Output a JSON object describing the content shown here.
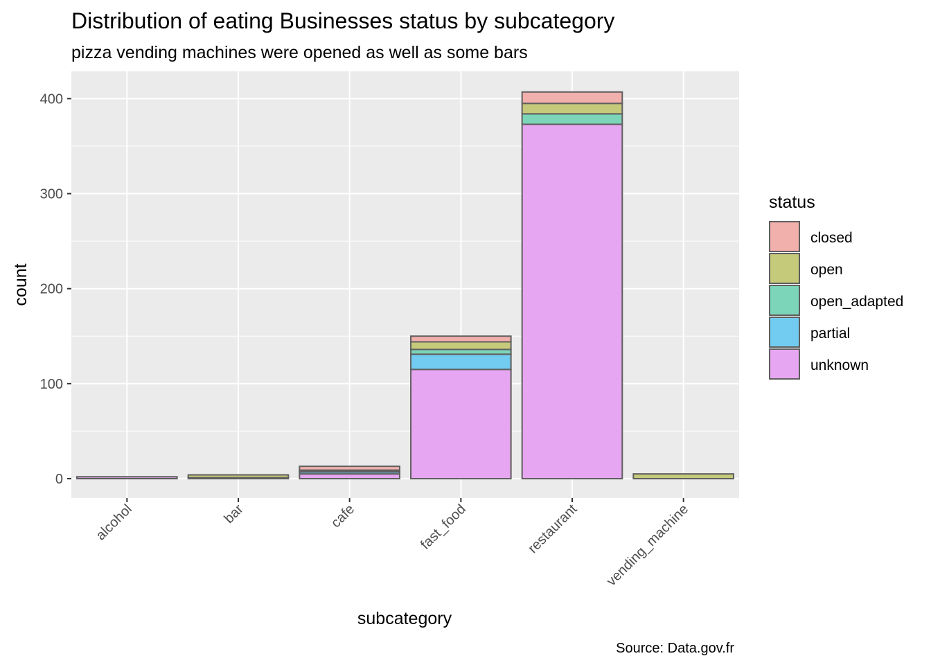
{
  "chart_data": {
    "type": "bar",
    "stacked": true,
    "title": "Distribution of eating Businesses status by subcategory",
    "subtitle": "pizza vending machines were opened as well as some bars",
    "xlabel": "subcategory",
    "ylabel": "count",
    "caption": "Source: Data.gov.fr",
    "ylim": [
      -20,
      420
    ],
    "yticks": [
      0,
      100,
      200,
      300,
      400
    ],
    "grid": true,
    "legend_title": "status",
    "legend_position": "right",
    "categories": [
      "alcohol",
      "bar",
      "cafe",
      "fast_food",
      "restaurant",
      "vending_machine"
    ],
    "series": [
      {
        "name": "unknown",
        "color": "#E7A6F1",
        "values": [
          2,
          1,
          5,
          115,
          373,
          0
        ]
      },
      {
        "name": "partial",
        "color": "#72CBF0",
        "values": [
          0,
          0,
          2,
          16,
          0,
          0
        ]
      },
      {
        "name": "open_adapted",
        "color": "#7CD5B8",
        "values": [
          0,
          0,
          1,
          5,
          11,
          0
        ]
      },
      {
        "name": "open",
        "color": "#C5C97A",
        "values": [
          0,
          3,
          1,
          8,
          11,
          5
        ]
      },
      {
        "name": "closed",
        "color": "#F2B0AC",
        "values": [
          0,
          0,
          4,
          6,
          12,
          0
        ]
      }
    ],
    "legend_order": [
      "closed",
      "open",
      "open_adapted",
      "partial",
      "unknown"
    ]
  }
}
